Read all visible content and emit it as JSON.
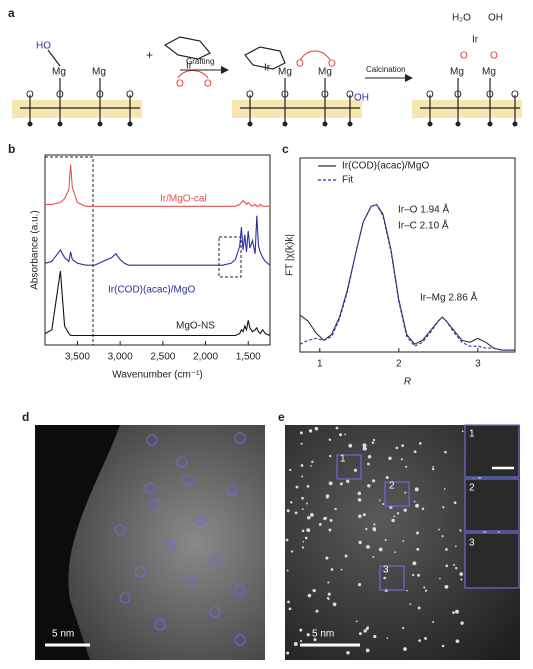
{
  "panel_labels": [
    "a",
    "b",
    "c",
    "d",
    "e"
  ],
  "scheme": {
    "ho": "HO",
    "mg": "Mg",
    "o": "O",
    "plus": "+",
    "ir": "Ir",
    "grafting": "Grafting",
    "calcination": "Calcination",
    "oh": "OH",
    "h2o": "H₂O"
  },
  "chart_data": [
    {
      "type": "line",
      "xlabel": "Wavenumber (cm⁻¹)",
      "ylabel": "Absorbance (a.u.)",
      "x": [
        3880,
        3800,
        3700,
        3650,
        3600,
        3580,
        3560,
        3500,
        3400,
        3300,
        3200,
        3100,
        3050,
        3000,
        2950,
        2900,
        2800,
        2600,
        2400,
        2200,
        2000,
        1800,
        1700,
        1650,
        1600,
        1580,
        1560,
        1540,
        1520,
        1500,
        1480,
        1450,
        1420,
        1400,
        1380,
        1360,
        1330,
        1300,
        1245
      ],
      "xlim": [
        3880,
        1245
      ],
      "xticks": [
        {
          "value": 3500,
          "label": "3,500"
        },
        {
          "value": 3000,
          "label": "3,000"
        },
        {
          "value": 2500,
          "label": "2,500"
        },
        {
          "value": 2000,
          "label": "2,000"
        },
        {
          "value": 1500,
          "label": "1,500"
        }
      ],
      "ylim": [
        0,
        10
      ],
      "series": [
        {
          "name": "Ir/MgO-cal",
          "color": "#e8504f",
          "values": [
            7.4,
            7.4,
            7.5,
            7.7,
            8.2,
            9.5,
            8.3,
            7.5,
            7.3,
            7.3,
            7.3,
            7.3,
            7.3,
            7.3,
            7.3,
            7.3,
            7.3,
            7.3,
            7.3,
            7.3,
            7.3,
            7.3,
            7.3,
            7.3,
            7.4,
            7.5,
            7.6,
            7.5,
            7.4,
            7.5,
            7.4,
            7.3,
            7.4,
            7.3,
            7.3,
            7.4,
            7.3,
            7.3,
            7.3
          ]
        },
        {
          "name": "Ir(COD)(acac)/MgO",
          "color": "#2b2f9e",
          "values": [
            4.3,
            4.4,
            5.0,
            4.6,
            4.4,
            4.9,
            4.5,
            4.3,
            4.2,
            4.2,
            4.4,
            4.6,
            4.8,
            4.5,
            4.3,
            4.2,
            4.2,
            4.2,
            4.2,
            4.2,
            4.2,
            4.2,
            4.3,
            4.5,
            5.2,
            6.2,
            5.0,
            5.8,
            4.9,
            6.0,
            5.1,
            5.5,
            4.8,
            6.8,
            5.2,
            4.9,
            4.6,
            4.4,
            4.2
          ]
        },
        {
          "name": "MgO-NS",
          "color": "#111111",
          "values": [
            0.6,
            0.8,
            3.9,
            1.0,
            0.6,
            0.5,
            0.5,
            0.5,
            0.5,
            0.5,
            0.5,
            0.5,
            0.5,
            0.5,
            0.5,
            0.5,
            0.5,
            0.5,
            0.5,
            0.5,
            0.5,
            0.5,
            0.5,
            0.5,
            0.6,
            0.8,
            0.7,
            1.0,
            0.8,
            1.3,
            0.9,
            0.7,
            0.8,
            0.9,
            0.7,
            0.6,
            0.8,
            0.6,
            0.5
          ]
        }
      ]
    },
    {
      "type": "line",
      "xlabel": "R",
      "ylabel": "FT |χ(k)k|",
      "x": [
        0.75,
        0.85,
        0.95,
        1.05,
        1.15,
        1.25,
        1.35,
        1.45,
        1.55,
        1.65,
        1.72,
        1.8,
        1.9,
        2.0,
        2.1,
        2.2,
        2.3,
        2.4,
        2.5,
        2.55,
        2.6,
        2.7,
        2.8,
        2.9,
        3.0,
        3.1,
        3.2,
        3.3,
        3.47
      ],
      "xlim": [
        0.75,
        3.47
      ],
      "xticks": [
        1,
        2,
        3
      ],
      "ylim": [
        0,
        10
      ],
      "legend": "upper left",
      "annotations": [
        "Ir–O 1.94 Å",
        "Ir–C 2.10 Å",
        "Ir–Mg 2.86 Å"
      ],
      "series": [
        {
          "name": "Ir(COD)(acac)/MgO",
          "color": "#333333",
          "linestyle": "solid",
          "values": [
            1.9,
            1.6,
            1.0,
            0.6,
            0.9,
            1.8,
            3.2,
            5.0,
            6.7,
            7.5,
            7.6,
            7.1,
            5.3,
            2.7,
            0.9,
            0.4,
            0.6,
            1.1,
            1.6,
            1.8,
            1.6,
            1.1,
            0.6,
            0.5,
            0.7,
            0.5,
            0.2,
            0.1,
            0.1
          ]
        },
        {
          "name": "Fit",
          "color": "#2b2fb8",
          "linestyle": "dashed",
          "values": [
            0.4,
            0.6,
            0.7,
            0.6,
            0.8,
            1.7,
            3.1,
            5.0,
            6.7,
            7.5,
            7.6,
            7.0,
            5.2,
            2.6,
            0.8,
            0.3,
            0.5,
            1.0,
            1.6,
            1.8,
            1.6,
            1.0,
            0.5,
            0.3,
            0.3,
            0.2,
            0.2,
            0.1,
            0.1
          ]
        }
      ]
    }
  ],
  "images": {
    "d": {
      "scale_bar": "5 nm"
    },
    "e": {
      "scale_bar": "5 nm",
      "regions": [
        "1",
        "2",
        "3"
      ]
    }
  }
}
